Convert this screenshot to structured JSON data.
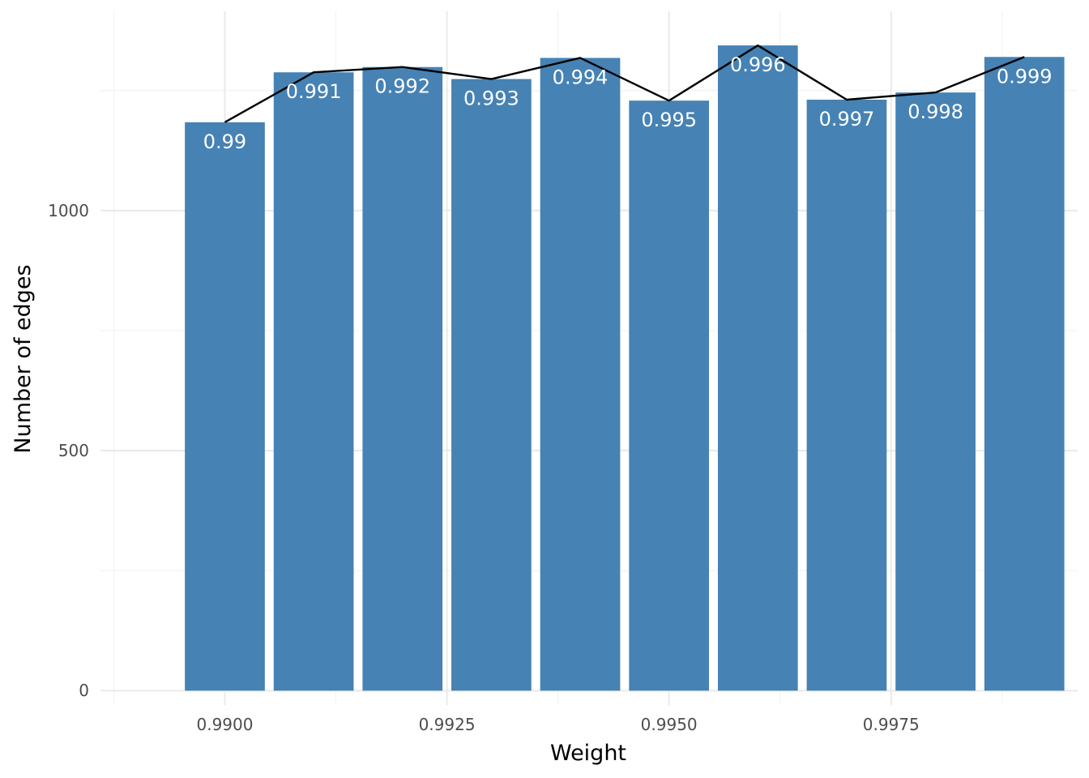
{
  "chart_data": {
    "type": "bar",
    "title": "",
    "xlabel": "Weight",
    "ylabel": "Number of edges",
    "x": [
      0.99,
      0.991,
      0.992,
      0.993,
      0.994,
      0.995,
      0.996,
      0.997,
      0.998,
      0.999
    ],
    "values": [
      1184,
      1288,
      1299,
      1274,
      1318,
      1229,
      1344,
      1231,
      1246,
      1320
    ],
    "bar_labels": [
      "0.99",
      "0.991",
      "0.992",
      "0.993",
      "0.994",
      "0.995",
      "0.996",
      "0.997",
      "0.998",
      "0.999"
    ],
    "line_overlay": true,
    "xlim": [
      0.9886,
      0.9996
    ],
    "ylim": [
      -30,
      1415
    ],
    "x_ticks": [
      0.99,
      0.9925,
      0.995,
      0.9975
    ],
    "x_tick_labels": [
      "0.9900",
      "0.9925",
      "0.9950",
      "0.9975"
    ],
    "y_ticks": [
      0,
      500,
      1000
    ],
    "y_tick_labels": [
      "0",
      "500",
      "1000"
    ],
    "grid": true,
    "colors": {
      "bar": "#4682b4",
      "line": "#000000",
      "bar_label": "#ffffff",
      "grid": "#ebebeb"
    }
  }
}
